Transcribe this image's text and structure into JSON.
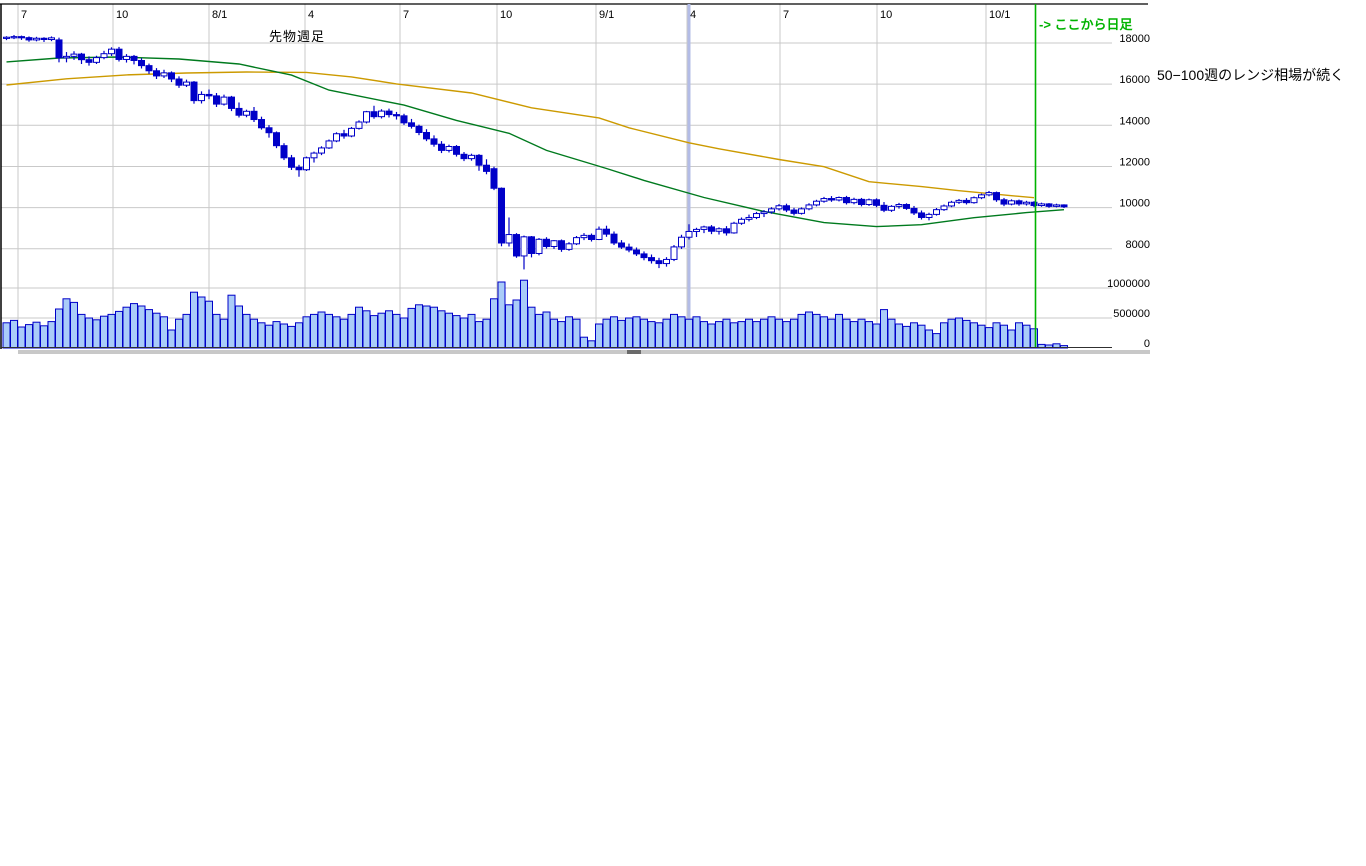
{
  "page": {
    "background": "#ffffff"
  },
  "chart": {
    "title": "先物週足",
    "annotation_daily": "-> ここから日足",
    "annotation_range": "50−100週のレンジ相場が続く",
    "colors": {
      "candle": "#0000c8",
      "candle_up_fill": "#ffffff",
      "volume_fill": "#aaccf8",
      "ma_short": "#007a1e",
      "ma_long": "#cc9a00",
      "grid": "#c9c9c9",
      "frame": "#000000",
      "green_vline": "#00b300",
      "cursor_vline": "#b3bce6",
      "scroll_track": "#c8c8c8",
      "scroll_thumb": "#6a6a6a",
      "label": "#000000"
    }
  },
  "chart_data": {
    "type": "candlestick",
    "title": "先物週足",
    "grid": true,
    "legend_position": "none",
    "ylim_price": [
      7000,
      18500
    ],
    "ylim_volume": [
      0,
      1200000
    ],
    "x_ticks": [
      {
        "label": "7",
        "x": 18
      },
      {
        "label": "10",
        "x": 113
      },
      {
        "label": "8/1",
        "x": 209
      },
      {
        "label": "4",
        "x": 305
      },
      {
        "label": "7",
        "x": 400
      },
      {
        "label": "10",
        "x": 497
      },
      {
        "label": "9/1",
        "x": 596
      },
      {
        "label": "4",
        "x": 687
      },
      {
        "label": "7",
        "x": 780
      },
      {
        "label": "10",
        "x": 877
      },
      {
        "label": "10/1",
        "x": 986
      }
    ],
    "price_ticks": [
      18000,
      16000,
      14000,
      12000,
      10000,
      8000
    ],
    "volume_ticks": [
      1000000,
      500000,
      0
    ],
    "vline_green_week": 137.2,
    "vline_cursor_week": 91,
    "candles_columns": [
      "open",
      "high",
      "low",
      "close",
      "volume"
    ],
    "candles": [
      [
        18230,
        18330,
        18140,
        18280,
        420000
      ],
      [
        18280,
        18390,
        18190,
        18310,
        460000
      ],
      [
        18310,
        18360,
        18150,
        18260,
        350000
      ],
      [
        18260,
        18320,
        18060,
        18150,
        390000
      ],
      [
        18150,
        18300,
        18080,
        18230,
        430000
      ],
      [
        18230,
        18280,
        18050,
        18170,
        370000
      ],
      [
        18170,
        18320,
        18090,
        18250,
        440000
      ],
      [
        18150,
        18260,
        17060,
        17280,
        650000
      ],
      [
        17280,
        17560,
        17060,
        17350,
        820000
      ],
      [
        17350,
        17600,
        17180,
        17460,
        760000
      ],
      [
        17460,
        17520,
        16980,
        17190,
        560000
      ],
      [
        17190,
        17350,
        16900,
        17060,
        500000
      ],
      [
        17060,
        17380,
        16980,
        17290,
        470000
      ],
      [
        17290,
        17620,
        17210,
        17480,
        530000
      ],
      [
        17480,
        17790,
        17370,
        17700,
        560000
      ],
      [
        17700,
        17810,
        17100,
        17200,
        610000
      ],
      [
        17200,
        17460,
        17050,
        17350,
        680000
      ],
      [
        17350,
        17420,
        16960,
        17150,
        740000
      ],
      [
        17150,
        17260,
        16760,
        16900,
        700000
      ],
      [
        16900,
        17000,
        16500,
        16650,
        640000
      ],
      [
        16650,
        16780,
        16250,
        16400,
        580000
      ],
      [
        16400,
        16700,
        16300,
        16550,
        520000
      ],
      [
        16550,
        16620,
        16100,
        16250,
        300000
      ],
      [
        16250,
        16380,
        15820,
        15950,
        480000
      ],
      [
        15950,
        16220,
        15860,
        16100,
        560000
      ],
      [
        16100,
        16150,
        15050,
        15200,
        930000
      ],
      [
        15200,
        15650,
        15060,
        15500,
        850000
      ],
      [
        15500,
        15740,
        15270,
        15430,
        780000
      ],
      [
        15430,
        15570,
        14890,
        15030,
        560000
      ],
      [
        15030,
        15490,
        14960,
        15370,
        480000
      ],
      [
        15370,
        15430,
        14690,
        14820,
        880000
      ],
      [
        14820,
        15110,
        14380,
        14490,
        700000
      ],
      [
        14490,
        14760,
        14390,
        14680,
        560000
      ],
      [
        14680,
        14890,
        14160,
        14280,
        480000
      ],
      [
        14280,
        14420,
        13790,
        13880,
        420000
      ],
      [
        13880,
        14010,
        13400,
        13640,
        380000
      ],
      [
        13640,
        13700,
        12890,
        13010,
        440000
      ],
      [
        13010,
        13130,
        12310,
        12420,
        400000
      ],
      [
        12420,
        12560,
        11830,
        11960,
        360000
      ],
      [
        11960,
        12080,
        11500,
        11840,
        420000
      ],
      [
        11840,
        12480,
        11780,
        12420,
        520000
      ],
      [
        12420,
        12720,
        12190,
        12650,
        560000
      ],
      [
        12650,
        12980,
        12550,
        12900,
        600000
      ],
      [
        12900,
        13310,
        12850,
        13240,
        560000
      ],
      [
        13240,
        13660,
        13180,
        13590,
        520000
      ],
      [
        13590,
        13780,
        13350,
        13480,
        480000
      ],
      [
        13480,
        13920,
        13420,
        13850,
        560000
      ],
      [
        13850,
        14240,
        13790,
        14160,
        680000
      ],
      [
        14160,
        14700,
        14090,
        14660,
        620000
      ],
      [
        14660,
        14950,
        14320,
        14420,
        540000
      ],
      [
        14420,
        14780,
        14330,
        14690,
        580000
      ],
      [
        14690,
        14810,
        14380,
        14520,
        620000
      ],
      [
        14520,
        14650,
        14280,
        14460,
        560000
      ],
      [
        14460,
        14560,
        14020,
        14120,
        500000
      ],
      [
        14120,
        14310,
        13840,
        13950,
        660000
      ],
      [
        13950,
        14030,
        13520,
        13650,
        720000
      ],
      [
        13650,
        13810,
        13230,
        13340,
        700000
      ],
      [
        13340,
        13510,
        12960,
        13080,
        680000
      ],
      [
        13080,
        13230,
        12650,
        12780,
        620000
      ],
      [
        12780,
        13060,
        12680,
        12970,
        580000
      ],
      [
        12970,
        13040,
        12480,
        12590,
        540000
      ],
      [
        12590,
        12700,
        12260,
        12380,
        500000
      ],
      [
        12380,
        12620,
        12280,
        12540,
        560000
      ],
      [
        12540,
        12600,
        11790,
        12060,
        440000
      ],
      [
        12060,
        12350,
        11620,
        11760,
        480000
      ],
      [
        11890,
        11990,
        10850,
        10940,
        820000
      ],
      [
        10940,
        10980,
        8120,
        8280,
        1100000
      ],
      [
        8280,
        9520,
        8110,
        8690,
        720000
      ],
      [
        8690,
        8760,
        7560,
        7650,
        800000
      ],
      [
        7650,
        8640,
        6995,
        8580,
        1130000
      ],
      [
        8580,
        8620,
        7580,
        7770,
        680000
      ],
      [
        7770,
        8520,
        7680,
        8460,
        560000
      ],
      [
        8460,
        8560,
        8010,
        8110,
        600000
      ],
      [
        8110,
        8420,
        7990,
        8390,
        480000
      ],
      [
        8390,
        8450,
        7850,
        7970,
        440000
      ],
      [
        7970,
        8320,
        7900,
        8240,
        520000
      ],
      [
        8240,
        8620,
        8180,
        8540,
        480000
      ],
      [
        8540,
        8760,
        8420,
        8650,
        180000
      ],
      [
        8650,
        8740,
        8350,
        8450,
        120000
      ],
      [
        8450,
        9080,
        8420,
        8950,
        400000
      ],
      [
        8950,
        9120,
        8580,
        8710,
        480000
      ],
      [
        8710,
        8840,
        8180,
        8280,
        520000
      ],
      [
        8280,
        8420,
        7990,
        8080,
        460000
      ],
      [
        8080,
        8250,
        7830,
        7940,
        500000
      ],
      [
        7940,
        8060,
        7650,
        7750,
        520000
      ],
      [
        7750,
        7870,
        7440,
        7570,
        480000
      ],
      [
        7570,
        7720,
        7280,
        7420,
        440000
      ],
      [
        7420,
        7560,
        7060,
        7280,
        420000
      ],
      [
        7280,
        7590,
        7130,
        7480,
        480000
      ],
      [
        7480,
        8180,
        7400,
        8090,
        560000
      ],
      [
        8090,
        8680,
        7990,
        8560,
        520000
      ],
      [
        8560,
        9190,
        8450,
        8840,
        480000
      ],
      [
        8840,
        9020,
        8570,
        8940,
        520000
      ],
      [
        8940,
        9120,
        8760,
        9060,
        440000
      ],
      [
        9060,
        9150,
        8710,
        8850,
        400000
      ],
      [
        8850,
        9040,
        8690,
        8970,
        440000
      ],
      [
        8970,
        9100,
        8640,
        8770,
        480000
      ],
      [
        8770,
        9310,
        8730,
        9240,
        420000
      ],
      [
        9240,
        9520,
        9160,
        9430,
        440000
      ],
      [
        9430,
        9660,
        9330,
        9520,
        480000
      ],
      [
        9520,
        9790,
        9440,
        9710,
        440000
      ],
      [
        9710,
        9880,
        9540,
        9790,
        480000
      ],
      [
        9790,
        10020,
        9700,
        9940,
        520000
      ],
      [
        9940,
        10170,
        9860,
        10090,
        480000
      ],
      [
        10090,
        10190,
        9780,
        9880,
        440000
      ],
      [
        9880,
        9990,
        9620,
        9720,
        480000
      ],
      [
        9720,
        10010,
        9660,
        9940,
        560000
      ],
      [
        9940,
        10210,
        9870,
        10130,
        600000
      ],
      [
        10130,
        10380,
        10060,
        10310,
        560000
      ],
      [
        10310,
        10520,
        10240,
        10440,
        520000
      ],
      [
        10440,
        10560,
        10280,
        10370,
        480000
      ],
      [
        10370,
        10540,
        10300,
        10490,
        560000
      ],
      [
        10490,
        10570,
        10150,
        10240,
        480000
      ],
      [
        10240,
        10480,
        10160,
        10400,
        440000
      ],
      [
        10400,
        10470,
        10060,
        10150,
        480000
      ],
      [
        10150,
        10440,
        10080,
        10380,
        440000
      ],
      [
        10380,
        10450,
        10020,
        10110,
        400000
      ],
      [
        10110,
        10270,
        9780,
        9870,
        640000
      ],
      [
        9870,
        10120,
        9790,
        10060,
        480000
      ],
      [
        10060,
        10230,
        9950,
        10150,
        400000
      ],
      [
        10150,
        10210,
        9890,
        9960,
        360000
      ],
      [
        9960,
        10080,
        9640,
        9740,
        420000
      ],
      [
        9740,
        9860,
        9420,
        9520,
        380000
      ],
      [
        9520,
        9750,
        9380,
        9670,
        300000
      ],
      [
        9670,
        9980,
        9610,
        9900,
        240000
      ],
      [
        9900,
        10150,
        9840,
        10080,
        420000
      ],
      [
        10080,
        10330,
        10020,
        10260,
        480000
      ],
      [
        10260,
        10420,
        10180,
        10350,
        500000
      ],
      [
        10350,
        10460,
        10150,
        10240,
        460000
      ],
      [
        10240,
        10540,
        10190,
        10480,
        420000
      ],
      [
        10480,
        10680,
        10410,
        10620,
        380000
      ],
      [
        10620,
        10810,
        10550,
        10730,
        340000
      ],
      [
        10730,
        10780,
        10280,
        10380,
        420000
      ],
      [
        10380,
        10470,
        10070,
        10170,
        380000
      ],
      [
        10170,
        10400,
        10110,
        10330,
        300000
      ],
      [
        10330,
        10390,
        10090,
        10180,
        420000
      ],
      [
        10180,
        10330,
        10100,
        10260,
        380000
      ],
      [
        10260,
        10310,
        10020,
        10100,
        320000
      ],
      [
        10100,
        10240,
        10040,
        10180,
        60000
      ],
      [
        10180,
        10220,
        9990,
        10060,
        50000
      ],
      [
        10060,
        10190,
        10010,
        10130,
        70000
      ],
      [
        10130,
        10160,
        9980,
        10040,
        40000
      ]
    ],
    "ma_short_green": [
      [
        0,
        17080
      ],
      [
        7,
        17270
      ],
      [
        15,
        17320
      ],
      [
        23,
        17220
      ],
      [
        31,
        16980
      ],
      [
        38,
        16440
      ],
      [
        43,
        15710
      ],
      [
        53,
        14980
      ],
      [
        60,
        14240
      ],
      [
        67,
        13610
      ],
      [
        72,
        12780
      ],
      [
        80,
        11900
      ],
      [
        85,
        11320
      ],
      [
        93,
        10490
      ],
      [
        101,
        9810
      ],
      [
        109,
        9270
      ],
      [
        116,
        9075
      ],
      [
        122,
        9170
      ],
      [
        129,
        9510
      ],
      [
        136,
        9755
      ],
      [
        141,
        9900
      ]
    ],
    "ma_long_orange": [
      [
        0,
        15960
      ],
      [
        8,
        16260
      ],
      [
        16,
        16450
      ],
      [
        24,
        16540
      ],
      [
        32,
        16590
      ],
      [
        40,
        16570
      ],
      [
        46,
        16350
      ],
      [
        52,
        16010
      ],
      [
        62,
        15570
      ],
      [
        70,
        14850
      ],
      [
        79,
        14360
      ],
      [
        83,
        13880
      ],
      [
        91,
        13150
      ],
      [
        95,
        12860
      ],
      [
        103,
        12340
      ],
      [
        109,
        11990
      ],
      [
        115,
        11260
      ],
      [
        122,
        11020
      ],
      [
        127,
        10820
      ],
      [
        134,
        10580
      ],
      [
        137,
        10480
      ]
    ]
  }
}
